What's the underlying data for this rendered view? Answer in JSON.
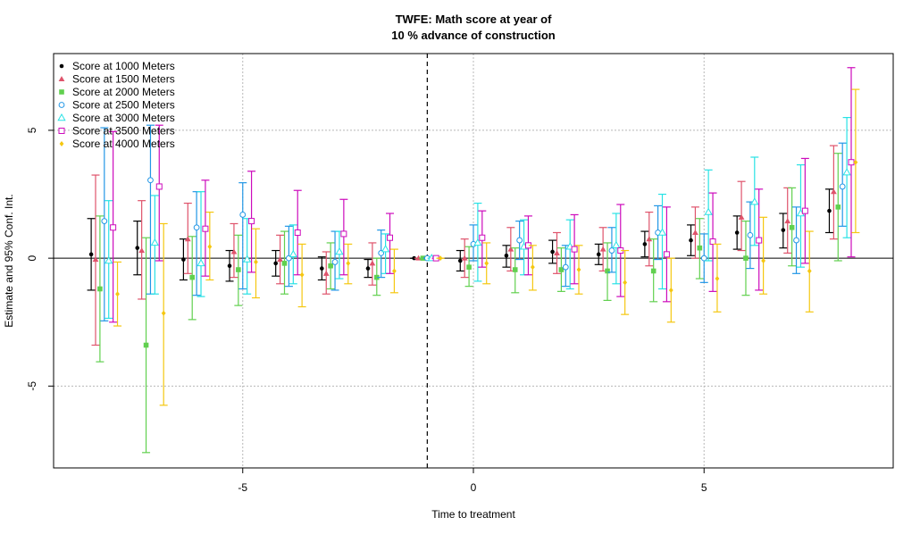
{
  "chart_data": {
    "type": "scatter",
    "title_line1": "TWFE: Math score  at year of",
    "title_line2": "10 % advance of construction",
    "xlabel": "Time to treatment",
    "ylabel": "Estimate and 95% Conf. Int.",
    "xlim": [
      -9.1,
      9.1
    ],
    "ylim": [
      -8.2,
      8.0
    ],
    "x_ticks": [
      -5,
      0,
      5
    ],
    "x_tick_labels": [
      "-5",
      "0",
      "5"
    ],
    "y_ticks": [
      -5,
      0,
      5
    ],
    "y_tick_labels": [
      "-5",
      "0",
      "5"
    ],
    "grid": true,
    "reference_x": -1,
    "reference_y": 0,
    "legend_position": "top-left",
    "x": [
      -8,
      -7,
      -6,
      -5,
      -4,
      -3,
      -2,
      -1,
      0,
      1,
      2,
      3,
      4,
      5,
      6,
      7,
      8
    ],
    "series": [
      {
        "name": "Score at 1000 Meters",
        "color": "#000000",
        "marker": "dot",
        "estimates": [
          0.15,
          0.4,
          -0.05,
          -0.3,
          -0.2,
          -0.4,
          -0.4,
          0.0,
          -0.1,
          0.1,
          0.25,
          0.15,
          0.55,
          0.7,
          1.0,
          1.1,
          1.85
        ],
        "lower": [
          -1.25,
          -0.65,
          -0.85,
          -0.9,
          -0.7,
          -0.85,
          -0.75,
          0.0,
          -0.5,
          -0.35,
          -0.2,
          -0.25,
          0.05,
          0.1,
          0.35,
          0.4,
          1.0
        ],
        "upper": [
          1.55,
          1.45,
          0.75,
          0.3,
          0.3,
          0.05,
          -0.05,
          0.0,
          0.3,
          0.5,
          0.7,
          0.55,
          1.05,
          1.3,
          1.65,
          1.75,
          2.7
        ]
      },
      {
        "name": "Score at 1500 Meters",
        "color": "#DF536B",
        "marker": "triangle",
        "estimates": [
          -0.05,
          0.3,
          0.75,
          0.25,
          -0.05,
          -0.6,
          -0.2,
          0.0,
          0.0,
          0.35,
          0.2,
          0.35,
          0.75,
          1.0,
          1.6,
          1.45,
          2.6
        ],
        "lower": [
          -3.4,
          -1.6,
          -0.6,
          -0.75,
          -1.0,
          -1.4,
          -1.05,
          0.0,
          -0.75,
          -0.5,
          -0.6,
          -0.5,
          -0.3,
          0.0,
          0.3,
          0.2,
          0.75
        ],
        "upper": [
          3.25,
          2.25,
          2.15,
          1.35,
          0.9,
          0.25,
          0.6,
          0.0,
          0.75,
          1.2,
          1.0,
          1.2,
          1.8,
          2.0,
          3.0,
          2.75,
          4.4
        ]
      },
      {
        "name": "Score at 2000 Meters",
        "color": "#61D04F",
        "marker": "square",
        "estimates": [
          -1.2,
          -3.4,
          -0.75,
          -0.45,
          -0.2,
          -0.3,
          -0.75,
          0.0,
          -0.35,
          -0.45,
          -0.45,
          -0.5,
          -0.5,
          0.4,
          0.0,
          1.2,
          2.0
        ],
        "lower": [
          -4.05,
          -7.6,
          -2.4,
          -1.85,
          -1.4,
          -1.2,
          -1.45,
          0.0,
          -1.1,
          -1.35,
          -1.3,
          -1.65,
          -1.7,
          -0.8,
          -1.45,
          -0.3,
          -0.1
        ],
        "upper": [
          1.65,
          0.8,
          0.85,
          0.9,
          1.05,
          0.6,
          0.0,
          0.0,
          0.45,
          0.4,
          0.4,
          0.6,
          0.75,
          1.55,
          1.45,
          2.75,
          4.1
        ]
      },
      {
        "name": "Score at 2500 Meters",
        "color": "#2297E6",
        "marker": "circle",
        "estimates": [
          1.45,
          3.05,
          1.2,
          1.7,
          0.0,
          -0.15,
          0.2,
          0.0,
          0.55,
          0.7,
          -0.35,
          0.3,
          1.0,
          0.0,
          0.9,
          0.7,
          2.8
        ],
        "lower": [
          -2.45,
          -1.4,
          -1.45,
          -1.2,
          -1.1,
          -1.25,
          -0.75,
          0.0,
          -0.1,
          -0.05,
          -1.1,
          -0.55,
          -0.05,
          -0.95,
          -0.4,
          -0.6,
          1.25
        ],
        "upper": [
          5.1,
          5.2,
          2.6,
          2.95,
          1.25,
          1.05,
          1.1,
          0.0,
          1.3,
          1.45,
          0.5,
          1.2,
          2.05,
          0.95,
          2.2,
          2.0,
          4.5
        ]
      },
      {
        "name": "Score at 3000 Meters",
        "color": "#28E2E5",
        "marker": "triangle-open",
        "estimates": [
          -0.1,
          0.6,
          -0.2,
          -0.05,
          0.15,
          0.25,
          0.35,
          0.0,
          0.6,
          0.45,
          0.45,
          0.5,
          1.0,
          1.8,
          2.2,
          1.75,
          3.35
        ],
        "lower": [
          -2.35,
          -1.4,
          -1.5,
          -1.4,
          -1.0,
          -0.8,
          -0.6,
          0.0,
          -0.9,
          -0.65,
          -1.2,
          -1.0,
          -1.2,
          -0.1,
          0.5,
          -0.35,
          0.8
        ],
        "upper": [
          2.25,
          2.45,
          2.6,
          1.55,
          1.3,
          1.05,
          0.95,
          0.0,
          2.15,
          1.5,
          1.5,
          1.75,
          2.5,
          3.45,
          3.95,
          3.65,
          5.5
        ]
      },
      {
        "name": "Score at 3500 Meters",
        "color": "#CD0BBC",
        "marker": "square-open",
        "estimates": [
          1.2,
          2.8,
          1.15,
          1.45,
          1.0,
          0.95,
          0.8,
          0.0,
          0.8,
          0.5,
          0.35,
          0.3,
          0.15,
          0.65,
          0.7,
          1.85,
          3.75
        ],
        "lower": [
          -2.5,
          -0.1,
          -0.7,
          -0.55,
          -0.65,
          -0.65,
          -0.6,
          0.0,
          -0.35,
          -0.65,
          -1.0,
          -1.5,
          -1.7,
          -1.3,
          -1.25,
          -0.2,
          0.05
        ],
        "upper": [
          4.95,
          5.2,
          3.05,
          3.4,
          2.65,
          2.3,
          1.75,
          0.0,
          1.85,
          1.65,
          1.7,
          2.1,
          2.0,
          2.55,
          2.7,
          3.9,
          7.45
        ]
      },
      {
        "name": "Score at 4000 Meters",
        "color": "#F5C710",
        "marker": "diamond",
        "estimates": [
          -1.4,
          -2.15,
          0.45,
          -0.15,
          -0.65,
          -0.2,
          -0.5,
          0.0,
          -0.2,
          -0.35,
          -0.45,
          -0.95,
          -1.25,
          -0.8,
          -0.1,
          -0.5,
          3.75
        ],
        "lower": [
          -2.65,
          -5.75,
          -0.85,
          -1.55,
          -1.9,
          -1.0,
          -1.35,
          0.0,
          -1.0,
          -1.25,
          -1.4,
          -2.2,
          -2.5,
          -2.1,
          -1.4,
          -2.1,
          1.0
        ],
        "upper": [
          -0.15,
          1.35,
          1.8,
          1.15,
          0.55,
          0.55,
          0.35,
          0.0,
          0.6,
          0.5,
          0.5,
          0.3,
          0.0,
          0.55,
          1.6,
          1.05,
          6.6
        ]
      }
    ]
  }
}
